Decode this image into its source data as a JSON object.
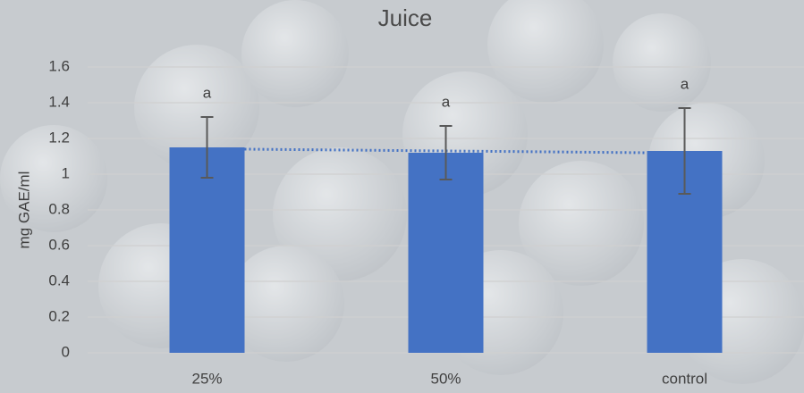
{
  "chart_data": {
    "type": "bar",
    "title": "Juice",
    "y_label": "mg GAE/ml",
    "categories": [
      "25%",
      "50%",
      "control"
    ],
    "values": [
      1.15,
      1.12,
      1.13
    ],
    "errors": [
      0.17,
      0.15,
      0.24
    ],
    "significance_labels": [
      "a",
      "a",
      "a"
    ],
    "color": "#4472c4",
    "error_color": "#595959",
    "trendline": {
      "values": [
        1.14,
        1.12
      ],
      "color": "#4472c4",
      "style": "dotted"
    },
    "ylim": [
      0,
      1.6
    ],
    "yticks": [
      0,
      0.2,
      0.4,
      0.6,
      0.8,
      1,
      1.2,
      1.4,
      1.6
    ],
    "grid": true
  }
}
